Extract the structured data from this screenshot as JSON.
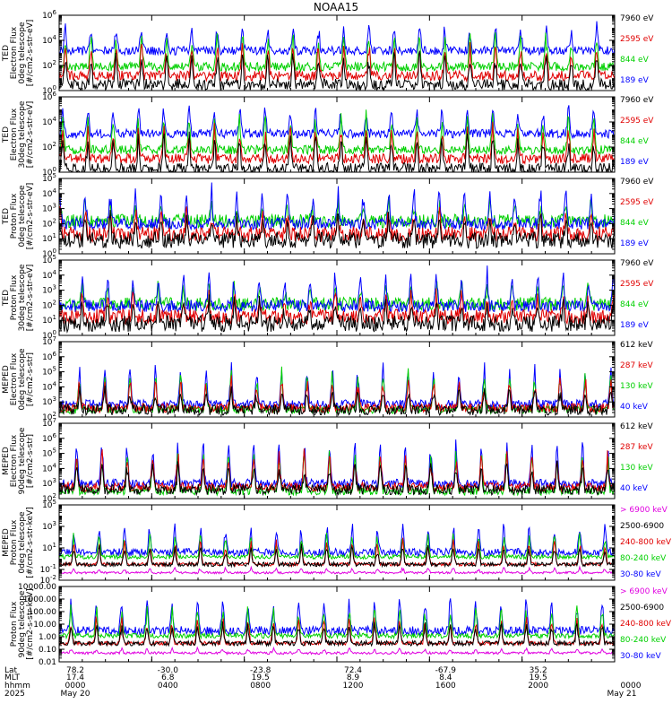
{
  "chart_data": {
    "type": "line",
    "title": "NOAA15",
    "x_ticks": [
      "0000",
      "0400",
      "0800",
      "1200",
      "1600",
      "2000",
      "0000"
    ],
    "x_rows": {
      "labels": [
        "Lat",
        "MLT",
        "hhmm",
        "2025"
      ],
      "lat": [
        "78.2",
        "-30.0",
        "-23.8",
        "72.4",
        "-67.9",
        "35.2"
      ],
      "mlt": [
        "17.4",
        "6.8",
        "19.5",
        "8.9",
        "8.4",
        "19.5"
      ],
      "dates": [
        "May 20",
        "May 21"
      ]
    },
    "panels": [
      {
        "ylabel": [
          "TED",
          "Electron Flux",
          "0deg telescope",
          "[#/cm2-s-str-eV]"
        ],
        "yscale": "log",
        "ylim": [
          1,
          1000000
        ],
        "y_ticks": [
          {
            "value": 1,
            "mant": "10",
            "exp": "0"
          },
          {
            "value": 100,
            "mant": "10",
            "exp": "2"
          },
          {
            "value": 10000,
            "mant": "10",
            "exp": "4"
          },
          {
            "value": 1000000,
            "mant": "10",
            "exp": "6"
          }
        ],
        "legend": [
          {
            "label": "7960 eV",
            "color": "#000000"
          },
          {
            "label": "2595 eV",
            "color": "#e00000"
          },
          {
            "label": "844 eV",
            "color": "#00d000"
          },
          {
            "label": "189 eV",
            "color": "#0000ff"
          }
        ],
        "series": [
          {
            "color": "#0000ff",
            "base": 1500,
            "peak": 200000,
            "noise": 0.35
          },
          {
            "color": "#00d000",
            "base": 80,
            "peak": 80000,
            "noise": 0.35
          },
          {
            "color": "#e00000",
            "base": 15,
            "peak": 8000,
            "noise": 0.4
          },
          {
            "color": "#000000",
            "base": 3,
            "peak": 1500,
            "noise": 0.45
          }
        ]
      },
      {
        "ylabel": [
          "TED",
          "Electron Flux",
          "30deg telescope",
          "[#/cm2-s-str-eV]"
        ],
        "yscale": "log",
        "ylim": [
          1,
          1000000
        ],
        "y_ticks": [
          {
            "value": 1,
            "mant": "10",
            "exp": "0"
          },
          {
            "value": 100,
            "mant": "10",
            "exp": "2"
          },
          {
            "value": 10000,
            "mant": "10",
            "exp": "4"
          },
          {
            "value": 1000000,
            "mant": "10",
            "exp": "6"
          }
        ],
        "legend": [
          {
            "label": "7960 eV",
            "color": "#000000"
          },
          {
            "label": "2595 eV",
            "color": "#e00000"
          },
          {
            "label": "844 eV",
            "color": "#00d000"
          },
          {
            "label": "189 eV",
            "color": "#0000ff"
          }
        ],
        "series": [
          {
            "color": "#0000ff",
            "base": 1200,
            "peak": 180000,
            "noise": 0.35
          },
          {
            "color": "#00d000",
            "base": 60,
            "peak": 70000,
            "noise": 0.35
          },
          {
            "color": "#e00000",
            "base": 12,
            "peak": 6000,
            "noise": 0.4
          },
          {
            "color": "#000000",
            "base": 2,
            "peak": 1200,
            "noise": 0.45
          }
        ]
      },
      {
        "ylabel": [
          "TED",
          "Proton Flux",
          "0deg telescope",
          "[#/cm2-s-str-eV]"
        ],
        "yscale": "log",
        "ylim": [
          1,
          100000
        ],
        "y_ticks": [
          {
            "value": 1,
            "mant": "10",
            "exp": "0"
          },
          {
            "value": 10,
            "mant": "10",
            "exp": "1"
          },
          {
            "value": 100,
            "mant": "10",
            "exp": "2"
          },
          {
            "value": 1000,
            "mant": "10",
            "exp": "3"
          },
          {
            "value": 10000,
            "mant": "10",
            "exp": "4"
          },
          {
            "value": 100000,
            "mant": "10",
            "exp": "5"
          }
        ],
        "legend": [
          {
            "label": "7960 eV",
            "color": "#000000"
          },
          {
            "label": "2595 eV",
            "color": "#e00000"
          },
          {
            "label": "844 eV",
            "color": "#00d000"
          },
          {
            "label": "189 eV",
            "color": "#0000ff"
          }
        ],
        "series": [
          {
            "color": "#00d000",
            "base": 150,
            "peak": 3000,
            "noise": 0.45
          },
          {
            "color": "#0000ff",
            "base": 100,
            "peak": 30000,
            "noise": 0.4
          },
          {
            "color": "#e00000",
            "base": 20,
            "peak": 800,
            "noise": 0.5
          },
          {
            "color": "#000000",
            "base": 8,
            "peak": 300,
            "noise": 0.55
          }
        ]
      },
      {
        "ylabel": [
          "TED",
          "Proton Flux",
          "30deg telescope",
          "[#/cm2-s-str-eV]"
        ],
        "yscale": "log",
        "ylim": [
          1,
          100000
        ],
        "y_ticks": [
          {
            "value": 1,
            "mant": "10",
            "exp": "0"
          },
          {
            "value": 10,
            "mant": "10",
            "exp": "1"
          },
          {
            "value": 100,
            "mant": "10",
            "exp": "2"
          },
          {
            "value": 1000,
            "mant": "10",
            "exp": "3"
          },
          {
            "value": 10000,
            "mant": "10",
            "exp": "4"
          },
          {
            "value": 100000,
            "mant": "10",
            "exp": "5"
          }
        ],
        "legend": [
          {
            "label": "7960 eV",
            "color": "#000000"
          },
          {
            "label": "2595 eV",
            "color": "#e00000"
          },
          {
            "label": "844 eV",
            "color": "#00d000"
          },
          {
            "label": "189 eV",
            "color": "#0000ff"
          }
        ],
        "series": [
          {
            "color": "#00d000",
            "base": 120,
            "peak": 2500,
            "noise": 0.45
          },
          {
            "color": "#0000ff",
            "base": 90,
            "peak": 20000,
            "noise": 0.4
          },
          {
            "color": "#e00000",
            "base": 18,
            "peak": 700,
            "noise": 0.5
          },
          {
            "color": "#000000",
            "base": 6,
            "peak": 250,
            "noise": 0.55
          }
        ]
      },
      {
        "ylabel": [
          "MEPED",
          "Electron Flux",
          "0deg telescope",
          "[#/cm2-s-str]"
        ],
        "yscale": "log",
        "ylim": [
          100,
          10000000
        ],
        "y_ticks": [
          {
            "value": 100,
            "mant": "10",
            "exp": "2"
          },
          {
            "value": 1000,
            "mant": "10",
            "exp": "3"
          },
          {
            "value": 10000,
            "mant": "10",
            "exp": "4"
          },
          {
            "value": 100000,
            "mant": "10",
            "exp": "5"
          },
          {
            "value": 1000000,
            "mant": "10",
            "exp": "6"
          },
          {
            "value": 10000000,
            "mant": "10",
            "exp": "7"
          }
        ],
        "legend": [
          {
            "label": "612 keV",
            "color": "#000000"
          },
          {
            "label": "287 keV",
            "color": "#e00000"
          },
          {
            "label": "130 keV",
            "color": "#00d000"
          },
          {
            "label": "40 keV",
            "color": "#0000ff"
          }
        ],
        "series": [
          {
            "color": "#0000ff",
            "base": 700,
            "peak": 500000,
            "noise": 0.3
          },
          {
            "color": "#00d000",
            "base": 300,
            "peak": 150000,
            "noise": 0.25
          },
          {
            "color": "#e00000",
            "base": 400,
            "peak": 60000,
            "noise": 0.3
          },
          {
            "color": "#000000",
            "base": 300,
            "peak": 8000,
            "noise": 0.35
          }
        ]
      },
      {
        "ylabel": [
          "MEPED",
          "Electron Flux",
          "90deg telescope",
          "[#/cm2-s-str]"
        ],
        "yscale": "log",
        "ylim": [
          100,
          10000000
        ],
        "y_ticks": [
          {
            "value": 100,
            "mant": "10",
            "exp": "2"
          },
          {
            "value": 1000,
            "mant": "10",
            "exp": "3"
          },
          {
            "value": 10000,
            "mant": "10",
            "exp": "4"
          },
          {
            "value": 100000,
            "mant": "10",
            "exp": "5"
          },
          {
            "value": 1000000,
            "mant": "10",
            "exp": "6"
          },
          {
            "value": 10000000,
            "mant": "10",
            "exp": "7"
          }
        ],
        "legend": [
          {
            "label": "612 keV",
            "color": "#000000"
          },
          {
            "label": "287 keV",
            "color": "#e00000"
          },
          {
            "label": "130 keV",
            "color": "#00d000"
          },
          {
            "label": "40 keV",
            "color": "#0000ff"
          }
        ],
        "series": [
          {
            "color": "#0000ff",
            "base": 1000,
            "peak": 900000,
            "noise": 0.3
          },
          {
            "color": "#00d000",
            "base": 300,
            "peak": 300000,
            "noise": 0.25
          },
          {
            "color": "#e00000",
            "base": 600,
            "peak": 150000,
            "noise": 0.3
          },
          {
            "color": "#000000",
            "base": 400,
            "peak": 30000,
            "noise": 0.35
          }
        ]
      },
      {
        "ylabel": [
          "MEPED",
          "Proton Flux",
          "0deg telescope",
          "[#/cm2-s-str-keV]"
        ],
        "yscale": "log",
        "ylim": [
          0.01,
          100000
        ],
        "y_ticks": [
          {
            "value": 0.01,
            "mant": "10",
            "exp": "-2"
          },
          {
            "value": 0.1,
            "mant": "10",
            "exp": "-1"
          },
          {
            "value": 10,
            "mant": "10",
            "exp": "1"
          },
          {
            "value": 1000,
            "mant": "10",
            "exp": "3"
          },
          {
            "value": 100000,
            "mant": "10",
            "exp": "5"
          }
        ],
        "legend": [
          {
            "label": "> 6900 keV",
            "color": "#e000e0"
          },
          {
            "label": "2500-6900",
            "color": "#000000"
          },
          {
            "label": "240-800 keV",
            "color": "#e00000"
          },
          {
            "label": "80-240 keV",
            "color": "#00d000"
          },
          {
            "label": "30-80 keV",
            "color": "#0000ff"
          }
        ],
        "series": [
          {
            "color": "#0000ff",
            "base": 4,
            "peak": 2000,
            "noise": 0.35
          },
          {
            "color": "#00d000",
            "base": 1.5,
            "peak": 300,
            "noise": 0.2
          },
          {
            "color": "#e00000",
            "base": 0.3,
            "peak": 80,
            "noise": 0.15
          },
          {
            "color": "#000000",
            "base": 0.3,
            "peak": 20,
            "noise": 0.2
          },
          {
            "color": "#e000e0",
            "base": 0.05,
            "peak": 0.15,
            "noise": 0.1
          }
        ]
      },
      {
        "ylabel": [
          "Proton Flux",
          "90deg telescope",
          "[#/cm2-s-str-keV]"
        ],
        "yscale": "log",
        "ylim": [
          0.01,
          10000
        ],
        "y_ticks": [
          {
            "value": 0.01,
            "label": "0.01"
          },
          {
            "value": 0.1,
            "label": "0.10"
          },
          {
            "value": 1,
            "label": "1.00"
          },
          {
            "value": 10,
            "label": "10.00"
          },
          {
            "value": 100,
            "label": "100.00"
          },
          {
            "value": 1000,
            "label": "1000.00"
          },
          {
            "value": 10000,
            "label": "10000.00"
          }
        ],
        "legend": [
          {
            "label": "> 6900 keV",
            "color": "#e000e0"
          },
          {
            "label": "2500-6900",
            "color": "#000000"
          },
          {
            "label": "240-800 keV",
            "color": "#e00000"
          },
          {
            "label": "80-240 keV",
            "color": "#00d000"
          },
          {
            "label": "30-80 keV",
            "color": "#0000ff"
          }
        ],
        "series": [
          {
            "color": "#0000ff",
            "base": 3,
            "peak": 2000,
            "noise": 0.35
          },
          {
            "color": "#00d000",
            "base": 1.2,
            "peak": 300,
            "noise": 0.2
          },
          {
            "color": "#e00000",
            "base": 0.3,
            "peak": 60,
            "noise": 0.15
          },
          {
            "color": "#000000",
            "base": 0.3,
            "peak": 15,
            "noise": 0.2
          },
          {
            "color": "#e000e0",
            "base": 0.05,
            "peak": 0.12,
            "noise": 0.1
          }
        ]
      }
    ]
  }
}
